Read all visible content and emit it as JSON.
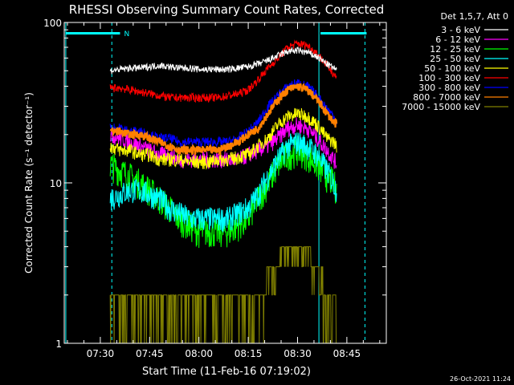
{
  "chart_data": {
    "type": "line",
    "title": "RHESSI Observing Summary Count Rates, Corrected",
    "xlabel": "Start Time (11-Feb-16 07:19:02)",
    "ylabel": "Corrected Count Rate (s⁻¹ detector⁻¹)",
    "x_ticks": [
      "07:30",
      "07:45",
      "08:00",
      "08:15",
      "08:30",
      "08:45"
    ],
    "x_tick_minutes": [
      30,
      45,
      60,
      75,
      90,
      105
    ],
    "xlim_minutes": [
      19.03,
      117.0
    ],
    "y_scale": "log",
    "ylim": [
      1,
      100
    ],
    "y_ticks": [
      "1",
      "10",
      "100"
    ],
    "grid": false,
    "legend_placement": "right",
    "legend_title": "Det 1,5,7, Att 0",
    "timestamp": "26-Oct-2021 11:24",
    "markers": {
      "flag_label": "N",
      "cyan_bars": [
        [
          19.5,
          36
        ],
        [
          97,
          111
        ]
      ],
      "solid_lines": [
        19.5,
        96.5
      ],
      "dashed_lines": [
        33.5,
        110.5
      ]
    },
    "time_minutes": [
      33,
      36,
      39,
      42,
      45,
      48,
      51,
      54,
      57,
      60,
      63,
      66,
      69,
      72,
      75,
      78,
      81,
      84,
      87,
      90,
      93,
      96,
      99,
      101,
      102
    ],
    "series": [
      {
        "name": "3 - 6 keV",
        "color": "#ffffff",
        "values": [
          50,
          51,
          52,
          52,
          53,
          54,
          53,
          52,
          52,
          51,
          51,
          51,
          51,
          52,
          53,
          55,
          58,
          62,
          66,
          67,
          65,
          61,
          55,
          52,
          50
        ]
      },
      {
        "name": "6 - 12 keV",
        "color": "#ff00ff",
        "values": [
          20,
          19,
          18,
          17,
          16,
          15,
          15,
          14,
          14,
          14,
          14,
          14,
          14,
          14,
          15,
          16,
          17,
          19,
          22,
          23,
          22,
          19,
          16,
          14,
          13
        ]
      },
      {
        "name": "12 - 25 keV",
        "color": "#00ff00",
        "values": [
          13,
          12,
          11,
          10,
          9,
          8,
          7,
          6,
          5.5,
          5,
          5,
          5,
          5,
          5.5,
          6,
          8,
          10,
          13,
          15,
          16,
          15,
          13,
          11,
          10,
          9
        ]
      },
      {
        "name": "25 - 50 keV",
        "color": "#00ffff",
        "values": [
          8,
          8.5,
          9,
          9,
          8.5,
          8,
          7,
          6.5,
          6,
          6,
          6,
          6,
          6,
          6.5,
          7,
          8.5,
          11,
          14,
          17,
          18,
          17,
          15,
          12,
          10,
          9
        ]
      },
      {
        "name": "50 - 100 keV",
        "color": "#ffff00",
        "values": [
          17,
          16,
          16,
          15,
          15,
          14,
          14,
          14,
          13.5,
          13.5,
          13.5,
          14,
          14,
          14.5,
          15,
          17,
          19,
          23,
          26,
          27,
          26,
          23,
          19,
          18,
          17
        ]
      },
      {
        "name": "100 - 300 keV",
        "color": "#ff0000",
        "values": [
          39,
          39,
          38,
          37,
          36,
          35,
          34,
          34,
          34,
          34,
          34,
          34,
          35,
          36,
          38,
          44,
          52,
          60,
          70,
          74,
          72,
          64,
          54,
          48,
          45
        ]
      },
      {
        "name": "300 - 800 keV",
        "color": "#0000ff",
        "values": [
          22,
          22,
          21,
          21,
          20,
          19,
          19,
          18,
          18,
          18,
          18,
          18,
          18,
          19,
          21,
          24,
          30,
          35,
          40,
          42,
          40,
          35,
          29,
          26,
          24
        ]
      },
      {
        "name": "800 - 7000 keV",
        "color": "#ff8000",
        "values": [
          21,
          21,
          20,
          20,
          19,
          18,
          17,
          16,
          16,
          16,
          16,
          16,
          17,
          18,
          20,
          22,
          27,
          33,
          38,
          40,
          38,
          33,
          27,
          24,
          23
        ]
      },
      {
        "name": "7000 - 15000 keV",
        "color": "#808000",
        "values": [
          1.5,
          1.6,
          1.5,
          1.5,
          1.5,
          1.5,
          1.5,
          1.5,
          1.5,
          1.5,
          1.5,
          1.5,
          1.5,
          1.6,
          1.7,
          2.0,
          2.6,
          3.4,
          4.0,
          4.2,
          3.8,
          3.0,
          2.2,
          1.8,
          1.6
        ]
      }
    ]
  }
}
